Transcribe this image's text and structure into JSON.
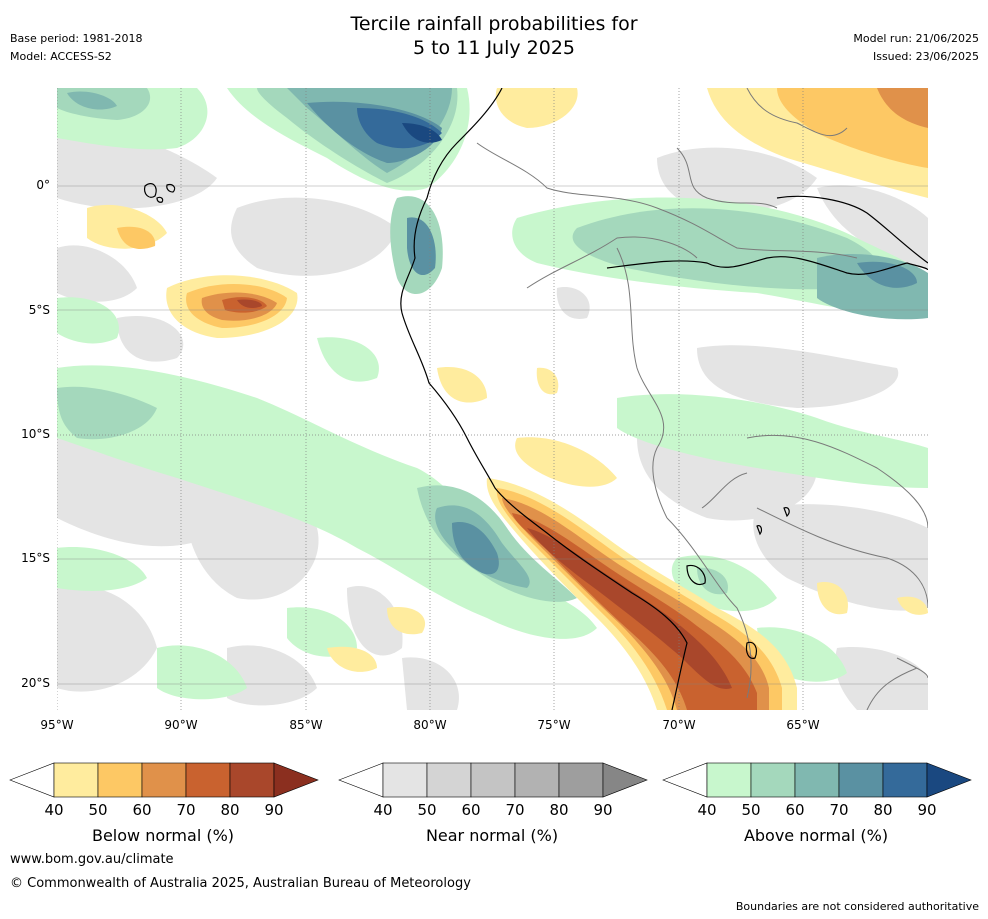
{
  "header": {
    "title_line1": "Tercile rainfall probabilities for",
    "title_line2": "5 to 11 July 2025",
    "base_period": "Base period: 1981-2018",
    "model": "Model: ACCESS-S2",
    "model_run": "Model run: 21/06/2025",
    "issued": "Issued: 23/06/2025"
  },
  "axes": {
    "x_ticks": [
      "95°W",
      "90°W",
      "85°W",
      "80°W",
      "75°W",
      "70°W",
      "65°W"
    ],
    "y_ticks": [
      "0°",
      "5°S",
      "10°S",
      "15°S",
      "20°S"
    ]
  },
  "legends": [
    {
      "label": "Below normal (%)",
      "ticks": [
        "40",
        "50",
        "60",
        "70",
        "80",
        "90"
      ],
      "colors": [
        "#ffec9e",
        "#fdc864",
        "#e0914a",
        "#c9622f",
        "#a9472b",
        "#8b2f1f"
      ]
    },
    {
      "label": "Near normal (%)",
      "ticks": [
        "40",
        "50",
        "60",
        "70",
        "80",
        "90"
      ],
      "colors": [
        "#e4e4e4",
        "#d4d4d4",
        "#c4c4c4",
        "#b2b2b2",
        "#9e9e9e",
        "#868686"
      ]
    },
    {
      "label": "Above normal (%)",
      "ticks": [
        "40",
        "50",
        "60",
        "70",
        "80",
        "90"
      ],
      "colors": [
        "#c8f7cd",
        "#a4d8bc",
        "#80b8b0",
        "#5a91a2",
        "#346a9a",
        "#1a4880"
      ]
    }
  ],
  "footer": {
    "website": "www.bom.gov.au/climate",
    "copyright": "© Commonwealth of Australia 2025, Australian Bureau of Meteorology",
    "disclaimer": "Boundaries are not considered authoritative"
  },
  "colors": {
    "coastline": "#000000",
    "borders": "#7a7a7a",
    "gridline": "#808080"
  }
}
